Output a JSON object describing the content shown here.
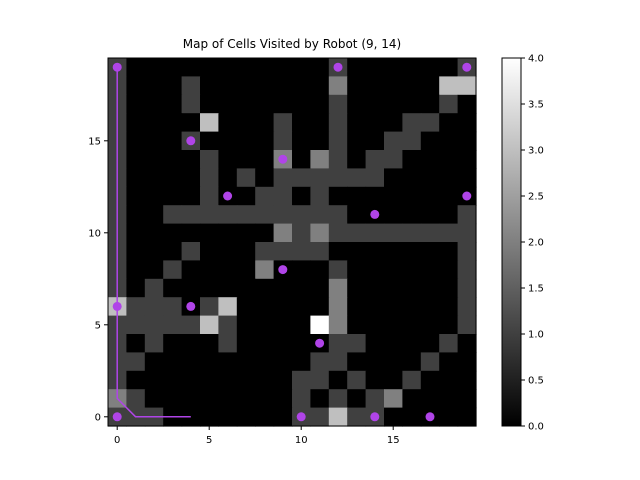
{
  "chart_data": {
    "type": "heatmap",
    "title": "Map of Cells Visited by Robot (9, 14)",
    "xlabel": "",
    "ylabel": "",
    "xlim": [
      -0.5,
      19.5
    ],
    "ylim": [
      -0.5,
      19.5
    ],
    "x_ticks": [
      0,
      5,
      10,
      15
    ],
    "y_ticks": [
      0,
      5,
      10,
      15
    ],
    "colormap": "gray",
    "colorbar": {
      "vmin": 0.0,
      "vmax": 4.0,
      "ticks": [
        "0.0",
        "0.5",
        "1.0",
        "1.5",
        "2.0",
        "2.5",
        "3.0",
        "3.5",
        "4.0"
      ]
    },
    "grid_rows_from_top": [
      "10000000000010000001",
      "10001000000020000033",
      "10001000000010000010",
      "10000300010010001100",
      "10001000010010011000",
      "10000100020210110000",
      "10000101011111100000",
      "10000100110100000000",
      "10011111111110000001",
      "10000000021211111111",
      "10001000111100000001",
      "10010000200010000001",
      "10100000000020000001",
      "31110130000020000001",
      "11111310000420000001",
      "10100010000011000010",
      "11000000000110000100",
      "10000000001101001000",
      "21000000001010120000",
      "11100000001131100000"
    ],
    "path_color": "#b044e8",
    "path": [
      [
        0,
        19
      ],
      [
        0,
        1
      ],
      [
        1,
        0
      ],
      [
        4,
        0
      ]
    ],
    "markers": [
      [
        0,
        19
      ],
      [
        0,
        6
      ],
      [
        0,
        0
      ],
      [
        4,
        15
      ],
      [
        4,
        6
      ],
      [
        6,
        12
      ],
      [
        9,
        14
      ],
      [
        9,
        8
      ],
      [
        12,
        19
      ],
      [
        14,
        11
      ],
      [
        11,
        4
      ],
      [
        19,
        19
      ],
      [
        19,
        12
      ],
      [
        10,
        0
      ],
      [
        14,
        0
      ],
      [
        17,
        0
      ]
    ]
  }
}
